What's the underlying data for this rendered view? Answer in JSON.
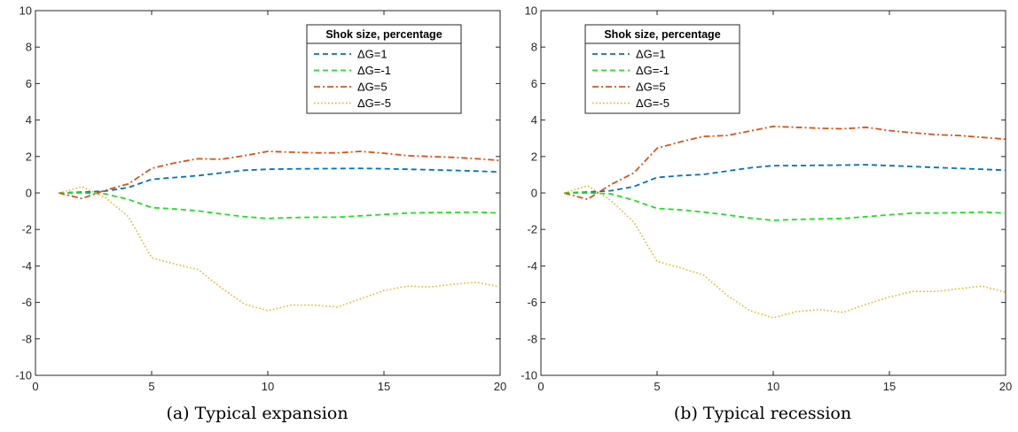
{
  "chart_data": [
    {
      "type": "line",
      "caption": "(a) Typical expansion",
      "xlim": [
        0,
        20
      ],
      "ylim": [
        -10,
        10
      ],
      "xticks": [
        0,
        5,
        10,
        15,
        20
      ],
      "yticks": [
        -10,
        -8,
        -6,
        -4,
        -2,
        0,
        2,
        4,
        6,
        8,
        10
      ],
      "legend": {
        "title": "Shok size, percentage",
        "placement": "top-right"
      },
      "x": [
        1,
        2,
        3,
        4,
        5,
        6,
        7,
        8,
        9,
        10,
        11,
        12,
        13,
        14,
        15,
        16,
        17,
        18,
        19,
        20
      ],
      "series": [
        {
          "name": "ΔG=1",
          "color": "#0072BD",
          "dash": "dashed",
          "values": [
            0,
            0.05,
            0.1,
            0.3,
            0.75,
            0.85,
            0.95,
            1.1,
            1.25,
            1.3,
            1.32,
            1.33,
            1.34,
            1.35,
            1.33,
            1.3,
            1.27,
            1.24,
            1.2,
            1.15
          ]
        },
        {
          "name": "ΔG=-1",
          "color": "#22DD22",
          "dash": "dashed",
          "values": [
            0,
            0,
            -0.05,
            -0.35,
            -0.8,
            -0.88,
            -0.98,
            -1.15,
            -1.3,
            -1.4,
            -1.35,
            -1.33,
            -1.33,
            -1.25,
            -1.18,
            -1.1,
            -1.08,
            -1.07,
            -1.05,
            -1.1
          ]
        },
        {
          "name": "ΔG=5",
          "color": "#D95319",
          "dash": "dashdot",
          "values": [
            0,
            -0.3,
            0.15,
            0.5,
            1.35,
            1.65,
            1.88,
            1.85,
            2.05,
            2.28,
            2.24,
            2.2,
            2.2,
            2.28,
            2.18,
            2.05,
            2.0,
            1.95,
            1.88,
            1.78
          ]
        },
        {
          "name": "ΔG=-5",
          "color": "#EDB120",
          "dash": "dotted",
          "values": [
            0,
            0.35,
            -0.25,
            -1.3,
            -3.55,
            -3.9,
            -4.2,
            -5.2,
            -6.1,
            -6.45,
            -6.15,
            -6.15,
            -6.25,
            -5.8,
            -5.35,
            -5.1,
            -5.15,
            -5.0,
            -4.9,
            -5.15
          ]
        }
      ]
    },
    {
      "type": "line",
      "caption": "(b) Typical recession",
      "xlim": [
        0,
        20
      ],
      "ylim": [
        -10,
        10
      ],
      "xticks": [
        0,
        5,
        10,
        15,
        20
      ],
      "yticks": [
        -10,
        -8,
        -6,
        -4,
        -2,
        0,
        2,
        4,
        6,
        8,
        10
      ],
      "legend": {
        "title": "Shok size, percentage",
        "placement": "top-left"
      },
      "x": [
        1,
        2,
        3,
        4,
        5,
        6,
        7,
        8,
        9,
        10,
        11,
        12,
        13,
        14,
        15,
        16,
        17,
        18,
        19,
        20
      ],
      "series": [
        {
          "name": "ΔG=1",
          "color": "#0072BD",
          "dash": "dashed",
          "values": [
            0,
            0.05,
            0.12,
            0.35,
            0.85,
            0.95,
            1.02,
            1.2,
            1.38,
            1.5,
            1.5,
            1.52,
            1.53,
            1.55,
            1.5,
            1.45,
            1.4,
            1.35,
            1.3,
            1.25
          ]
        },
        {
          "name": "ΔG=-1",
          "color": "#22DD22",
          "dash": "dashed",
          "values": [
            0,
            0,
            -0.05,
            -0.4,
            -0.85,
            -0.92,
            -1.05,
            -1.2,
            -1.38,
            -1.5,
            -1.45,
            -1.42,
            -1.4,
            -1.3,
            -1.2,
            -1.1,
            -1.1,
            -1.08,
            -1.05,
            -1.1
          ]
        },
        {
          "name": "ΔG=5",
          "color": "#D95319",
          "dash": "dashdot",
          "values": [
            0,
            -0.35,
            0.45,
            1.1,
            2.45,
            2.8,
            3.1,
            3.15,
            3.4,
            3.65,
            3.6,
            3.55,
            3.52,
            3.6,
            3.42,
            3.3,
            3.2,
            3.15,
            3.05,
            2.95
          ]
        },
        {
          "name": "ΔG=-5",
          "color": "#EDB120",
          "dash": "dotted",
          "values": [
            0,
            0.4,
            -0.4,
            -1.6,
            -3.75,
            -4.1,
            -4.5,
            -5.6,
            -6.45,
            -6.85,
            -6.5,
            -6.4,
            -6.55,
            -6.1,
            -5.7,
            -5.4,
            -5.4,
            -5.25,
            -5.1,
            -5.45
          ]
        }
      ]
    }
  ]
}
